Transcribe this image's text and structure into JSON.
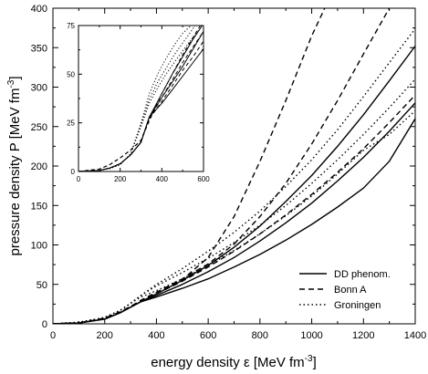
{
  "chart_data": [
    {
      "id": "main",
      "type": "line",
      "xlabel": "energy density ε [MeV fm",
      "xlabel_sup": "-3",
      "xlabel_end": "]",
      "ylabel": "pressure density P  [MeV fm",
      "ylabel_sup": "-3",
      "ylabel_end": "]",
      "xlim": [
        0,
        1400
      ],
      "ylim": [
        0,
        400
      ],
      "xticks": [
        0,
        200,
        400,
        600,
        800,
        1000,
        1200,
        1400
      ],
      "yticks": [
        0,
        50,
        100,
        150,
        200,
        250,
        300,
        350,
        400
      ],
      "grid": false,
      "legend_position": "lower-right",
      "legend": [
        {
          "label": "DD phenom.",
          "dash": "solid"
        },
        {
          "label": "Bonn A",
          "dash": "dashed"
        },
        {
          "label": "Groningen",
          "dash": "dotted"
        }
      ],
      "series": [
        {
          "dash": "solid",
          "x": [
            0,
            100,
            200,
            260,
            300,
            340,
            400,
            500,
            600,
            700,
            800,
            900,
            1000,
            1100,
            1200,
            1300,
            1400
          ],
          "y": [
            0,
            1,
            6,
            14,
            21,
            28,
            36,
            50,
            66,
            84,
            105,
            128,
            153,
            181,
            211,
            244,
            280
          ]
        },
        {
          "dash": "solid",
          "x": [
            0,
            100,
            200,
            260,
            300,
            340,
            400,
            500,
            600,
            700,
            800,
            900,
            1000,
            1100,
            1200,
            1300,
            1400
          ],
          "y": [
            0,
            1,
            6,
            14,
            21,
            28,
            34,
            45,
            57,
            72,
            88,
            106,
            126,
            148,
            172,
            206,
            260
          ]
        },
        {
          "dash": "solid",
          "x": [
            0,
            100,
            200,
            260,
            300,
            340,
            400,
            500,
            600,
            700,
            800,
            900,
            1000,
            1100,
            1200,
            1300,
            1400
          ],
          "y": [
            0,
            1,
            6,
            14,
            21,
            28,
            38,
            55,
            74,
            97,
            124,
            155,
            188,
            225,
            265,
            308,
            352
          ]
        },
        {
          "dash": "dashed",
          "x": [
            0,
            100,
            200,
            260,
            300,
            340,
            400,
            500,
            600,
            700,
            800,
            900,
            1000,
            1050
          ],
          "y": [
            0,
            1,
            7,
            15,
            22,
            29,
            38,
            56,
            84,
            136,
            206,
            283,
            365,
            400
          ]
        },
        {
          "dash": "dashed",
          "x": [
            0,
            100,
            200,
            260,
            300,
            340,
            400,
            500,
            600,
            700,
            800,
            900,
            1000,
            1100,
            1200,
            1300
          ],
          "y": [
            0,
            1,
            7,
            15,
            22,
            30,
            40,
            57,
            76,
            101,
            136,
            178,
            228,
            283,
            342,
            400
          ]
        },
        {
          "dash": "dashed",
          "x": [
            0,
            100,
            200,
            260,
            300,
            340,
            400,
            500,
            600,
            700,
            800,
            900,
            1000,
            1100,
            1200,
            1300,
            1400
          ],
          "y": [
            0,
            1,
            7,
            15,
            22,
            29,
            38,
            54,
            72,
            92,
            114,
            138,
            164,
            192,
            222,
            255,
            290
          ]
        },
        {
          "dash": "dotted",
          "x": [
            0,
            100,
            200,
            260,
            300,
            340,
            400,
            500,
            600,
            700,
            800,
            900,
            1000,
            1100,
            1200,
            1300,
            1400
          ],
          "y": [
            0,
            2,
            8,
            17,
            26,
            36,
            48,
            65,
            83,
            103,
            125,
            150,
            178,
            208,
            240,
            274,
            310
          ]
        },
        {
          "dash": "dotted",
          "x": [
            0,
            100,
            200,
            260,
            300,
            340,
            400,
            500,
            600,
            700,
            800,
            900,
            1000,
            1100,
            1200,
            1300,
            1400
          ],
          "y": [
            0,
            2,
            8,
            17,
            26,
            36,
            50,
            70,
            92,
            116,
            143,
            174,
            208,
            246,
            288,
            331,
            374
          ]
        },
        {
          "dash": "dotted",
          "x": [
            0,
            100,
            200,
            260,
            300,
            340,
            400,
            500,
            600,
            700,
            800,
            900,
            1000,
            1100,
            1200,
            1300,
            1400
          ],
          "y": [
            0,
            2,
            8,
            17,
            26,
            34,
            42,
            57,
            74,
            93,
            114,
            137,
            162,
            190,
            220,
            240,
            270
          ]
        }
      ]
    },
    {
      "id": "inset",
      "type": "line",
      "xlim": [
        0,
        600
      ],
      "ylim": [
        0,
        75
      ],
      "xticks": [
        0,
        200,
        400,
        600
      ],
      "yticks": [
        0,
        25,
        50,
        75
      ],
      "grid": false,
      "series": [
        {
          "dash": "solid",
          "x": [
            0,
            100,
            150,
            200,
            250,
            300,
            340,
            400,
            450,
            500,
            550,
            600
          ],
          "y": [
            0,
            0.5,
            1.8,
            4,
            8.5,
            15,
            28,
            38,
            46,
            54,
            63,
            72
          ]
        },
        {
          "dash": "solid",
          "x": [
            0,
            100,
            150,
            200,
            250,
            300,
            340,
            400,
            450,
            500,
            550,
            600
          ],
          "y": [
            0,
            0.5,
            1.8,
            4,
            8.5,
            15,
            28,
            35,
            42,
            49,
            56,
            63
          ]
        },
        {
          "dash": "solid",
          "x": [
            0,
            100,
            150,
            200,
            250,
            300,
            340,
            400,
            450,
            500,
            550,
            600
          ],
          "y": [
            0,
            0.5,
            1.8,
            4,
            8.5,
            15,
            28,
            40,
            50,
            59,
            68,
            76
          ]
        },
        {
          "dash": "dashed",
          "x": [
            0,
            100,
            150,
            200,
            250,
            300,
            340,
            400,
            450,
            500,
            550,
            585
          ],
          "y": [
            0,
            1.2,
            3.5,
            7,
            11,
            16,
            26,
            40,
            50,
            60,
            69,
            75
          ]
        },
        {
          "dash": "dashed",
          "x": [
            0,
            100,
            150,
            200,
            250,
            300,
            340,
            400,
            450,
            500,
            550,
            600
          ],
          "y": [
            0,
            1.2,
            3.5,
            7,
            11,
            16,
            27,
            38,
            47,
            56,
            64,
            72
          ]
        },
        {
          "dash": "dashed",
          "x": [
            0,
            100,
            150,
            200,
            250,
            300,
            340,
            400,
            450,
            500,
            550,
            600
          ],
          "y": [
            0,
            1.2,
            3.5,
            7,
            11,
            16,
            27,
            36,
            44,
            52,
            59,
            67
          ]
        },
        {
          "dash": "dotted",
          "x": [
            0,
            100,
            150,
            200,
            250,
            300,
            340,
            380,
            420,
            460,
            500,
            540
          ],
          "y": [
            0,
            0.5,
            1.5,
            3.5,
            9,
            25,
            40,
            50,
            58,
            65,
            71,
            75
          ]
        },
        {
          "dash": "dotted",
          "x": [
            0,
            100,
            150,
            200,
            250,
            300,
            340,
            380,
            420,
            460,
            500,
            560
          ],
          "y": [
            0,
            0.5,
            1.5,
            3.5,
            9,
            24,
            37,
            46,
            53,
            60,
            66,
            75
          ]
        },
        {
          "dash": "dotted",
          "x": [
            0,
            100,
            150,
            200,
            250,
            300,
            340,
            380,
            420,
            460,
            500,
            580
          ],
          "y": [
            0,
            0.5,
            1.5,
            3.5,
            9,
            23,
            35,
            43,
            50,
            56,
            62,
            73
          ]
        }
      ]
    }
  ]
}
